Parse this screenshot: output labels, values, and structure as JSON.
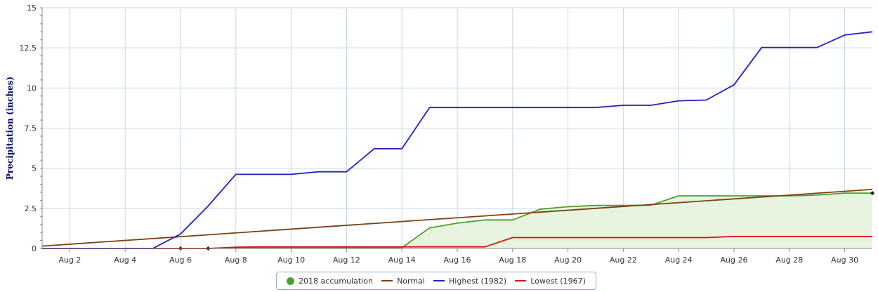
{
  "chart_data": {
    "type": "line",
    "ylabel": "Precipitation (inches)",
    "xlabel": "",
    "ylim": [
      0,
      15
    ],
    "yticks": [
      0,
      2.5,
      5,
      7.5,
      10,
      12.5,
      15
    ],
    "ytick_labels": [
      "0",
      "2.5",
      "5",
      "7.5",
      "10",
      "12.5",
      "15"
    ],
    "xlim": [
      1,
      31
    ],
    "xticks": [
      2,
      4,
      6,
      8,
      10,
      12,
      14,
      16,
      18,
      20,
      22,
      24,
      26,
      28,
      30
    ],
    "xtick_labels": [
      "Aug 2",
      "Aug 4",
      "Aug 6",
      "Aug 8",
      "Aug 10",
      "Aug 12",
      "Aug 14",
      "Aug 16",
      "Aug 18",
      "Aug 20",
      "Aug 22",
      "Aug 24",
      "Aug 26",
      "Aug 28",
      "Aug 30"
    ],
    "grid": true,
    "legend_position": "bottom-center",
    "series": [
      {
        "name": "2018 accumulation",
        "color": "#4aa02c",
        "fill": "#e8f3e0",
        "x": [
          1,
          2,
          3,
          4,
          5,
          6,
          7,
          8,
          9,
          10,
          11,
          12,
          13,
          14,
          15,
          16,
          17,
          18,
          19,
          20,
          21,
          22,
          23,
          24,
          25,
          26,
          27,
          28,
          29,
          30,
          31
        ],
        "y": [
          0,
          0,
          0,
          0,
          0,
          0,
          0,
          0.05,
          0.05,
          0.05,
          0.05,
          0.05,
          0.05,
          0.05,
          1.28,
          1.58,
          1.78,
          1.78,
          2.45,
          2.6,
          2.68,
          2.68,
          2.7,
          3.28,
          3.28,
          3.28,
          3.28,
          3.28,
          3.33,
          3.45,
          3.45
        ]
      },
      {
        "name": "Normal",
        "color": "#7b3f14",
        "x": [
          1,
          31
        ],
        "y": [
          0.15,
          3.68
        ]
      },
      {
        "name": "Highest (1982)",
        "color": "#2020cc",
        "x": [
          1,
          2,
          3,
          4,
          5,
          6,
          7,
          8,
          9,
          10,
          11,
          12,
          13,
          14,
          15,
          16,
          17,
          18,
          19,
          20,
          21,
          22,
          23,
          24,
          25,
          26,
          27,
          28,
          29,
          30,
          31
        ],
        "y": [
          0,
          0,
          0,
          0,
          0,
          0.9,
          2.65,
          4.62,
          4.62,
          4.62,
          4.78,
          4.78,
          6.22,
          6.22,
          8.78,
          8.78,
          8.78,
          8.78,
          8.78,
          8.78,
          8.78,
          8.92,
          8.92,
          9.2,
          9.25,
          10.2,
          12.52,
          12.52,
          12.52,
          13.3,
          13.5
        ]
      },
      {
        "name": "Lowest (1967)",
        "color": "#dd1111",
        "x": [
          1,
          2,
          3,
          4,
          5,
          6,
          7,
          8,
          9,
          10,
          11,
          12,
          13,
          14,
          15,
          16,
          17,
          18,
          19,
          20,
          21,
          22,
          23,
          24,
          25,
          26,
          27,
          28,
          29,
          30,
          31
        ],
        "y": [
          0,
          0,
          0,
          0,
          0,
          0,
          0,
          0.08,
          0.1,
          0.1,
          0.1,
          0.1,
          0.1,
          0.1,
          0.1,
          0.1,
          0.1,
          0.68,
          0.68,
          0.68,
          0.68,
          0.68,
          0.68,
          0.68,
          0.68,
          0.75,
          0.75,
          0.75,
          0.75,
          0.75,
          0.75
        ]
      }
    ],
    "markers": [
      {
        "x": 6,
        "y": 0
      },
      {
        "x": 7,
        "y": 0
      },
      {
        "x": 31,
        "y": 3.45
      }
    ]
  }
}
